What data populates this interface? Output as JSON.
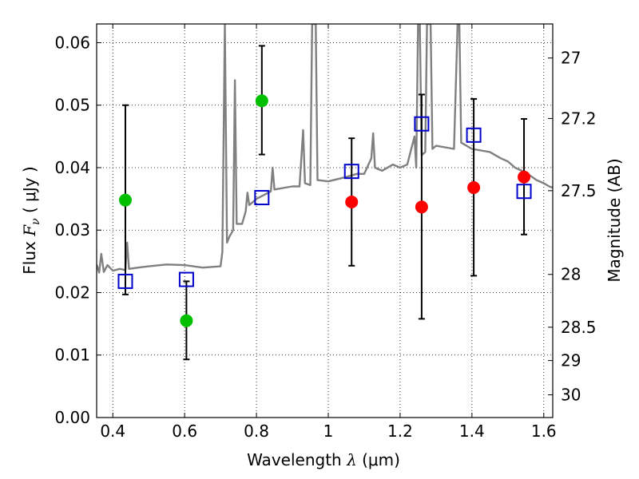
{
  "chart_data": {
    "type": "scatter",
    "xlabel": {
      "prefix": "Wavelength  ",
      "symbol": "λ",
      "units": " (μm)"
    },
    "ylabel": {
      "prefix": "Flux  ",
      "symbol": "F",
      "sub": "ν",
      "units": "  ( μJy )"
    },
    "y2label": "Magnitude (AB)",
    "xlim": [
      0.355,
      1.625
    ],
    "ylim": [
      0.0,
      0.063
    ],
    "x_ticks": [
      {
        "v": 0.4,
        "label": "0.4"
      },
      {
        "v": 0.6,
        "label": "0.6"
      },
      {
        "v": 0.8,
        "label": "0.8"
      },
      {
        "v": 1.0,
        "label": "1"
      },
      {
        "v": 1.2,
        "label": "1.2"
      },
      {
        "v": 1.4,
        "label": "1.4"
      },
      {
        "v": 1.6,
        "label": "1.6"
      }
    ],
    "y_ticks": [
      {
        "v": 0.0,
        "label": "0.00"
      },
      {
        "v": 0.01,
        "label": "0.01"
      },
      {
        "v": 0.02,
        "label": "0.02"
      },
      {
        "v": 0.03,
        "label": "0.03"
      },
      {
        "v": 0.04,
        "label": "0.04"
      },
      {
        "v": 0.05,
        "label": "0.05"
      },
      {
        "v": 0.06,
        "label": "0.06"
      }
    ],
    "y2_ticks": [
      {
        "mag": 27,
        "label": "27"
      },
      {
        "mag": 27.2,
        "label": "27.2"
      },
      {
        "mag": 27.5,
        "label": "27.5"
      },
      {
        "mag": 28,
        "label": "28"
      },
      {
        "mag": 28.5,
        "label": "28.5"
      },
      {
        "mag": 29,
        "label": "29"
      },
      {
        "mag": 30,
        "label": "30"
      }
    ],
    "grid": true,
    "colors": {
      "spectrum": "#808080",
      "detection": "#ff0000",
      "dropout": "#00c000",
      "model": "#0000cc",
      "errorbar": "#000000"
    },
    "series": [
      {
        "kind": "detection",
        "points": [
          {
            "x": 1.065,
            "y": 0.0345,
            "yerr_low": 0.0243,
            "yerr_high": 0.0447
          },
          {
            "x": 1.26,
            "y": 0.0337,
            "yerr_low": 0.0158,
            "yerr_high": 0.0517
          },
          {
            "x": 1.405,
            "y": 0.0368,
            "yerr_low": 0.0227,
            "yerr_high": 0.051
          },
          {
            "x": 1.545,
            "y": 0.0385,
            "yerr_low": 0.0293,
            "yerr_high": 0.0478
          }
        ]
      },
      {
        "kind": "dropout",
        "points": [
          {
            "x": 0.435,
            "y": 0.0348,
            "yerr_low": 0.0197,
            "yerr_high": 0.05
          },
          {
            "x": 0.605,
            "y": 0.0155,
            "yerr_low": 0.0093,
            "yerr_high": 0.0218
          },
          {
            "x": 0.815,
            "y": 0.0507,
            "yerr_low": 0.0421,
            "yerr_high": 0.0595
          }
        ]
      },
      {
        "kind": "model",
        "points": [
          {
            "x": 0.435,
            "y": 0.0218
          },
          {
            "x": 0.605,
            "y": 0.0221
          },
          {
            "x": 0.815,
            "y": 0.0352
          },
          {
            "x": 1.065,
            "y": 0.0394
          },
          {
            "x": 1.26,
            "y": 0.047
          },
          {
            "x": 1.405,
            "y": 0.0452
          },
          {
            "x": 1.545,
            "y": 0.0362
          }
        ]
      }
    ],
    "spectrum": [
      [
        0.355,
        0.0245
      ],
      [
        0.362,
        0.0232
      ],
      [
        0.368,
        0.0262
      ],
      [
        0.375,
        0.0233
      ],
      [
        0.385,
        0.0244
      ],
      [
        0.4,
        0.0235
      ],
      [
        0.42,
        0.0238
      ],
      [
        0.435,
        0.0236
      ],
      [
        0.44,
        0.028
      ],
      [
        0.445,
        0.0238
      ],
      [
        0.47,
        0.024
      ],
      [
        0.5,
        0.0242
      ],
      [
        0.55,
        0.0245
      ],
      [
        0.6,
        0.0244
      ],
      [
        0.65,
        0.024
      ],
      [
        0.7,
        0.0242
      ],
      [
        0.705,
        0.0265
      ],
      [
        0.712,
        0.063
      ],
      [
        0.718,
        0.028
      ],
      [
        0.725,
        0.029
      ],
      [
        0.735,
        0.03
      ],
      [
        0.74,
        0.054
      ],
      [
        0.745,
        0.031
      ],
      [
        0.76,
        0.031
      ],
      [
        0.77,
        0.033
      ],
      [
        0.775,
        0.036
      ],
      [
        0.78,
        0.034
      ],
      [
        0.79,
        0.0345
      ],
      [
        0.8,
        0.035
      ],
      [
        0.82,
        0.0356
      ],
      [
        0.84,
        0.0362
      ],
      [
        0.845,
        0.04
      ],
      [
        0.85,
        0.0365
      ],
      [
        0.88,
        0.0368
      ],
      [
        0.9,
        0.037
      ],
      [
        0.92,
        0.037
      ],
      [
        0.93,
        0.046
      ],
      [
        0.935,
        0.0375
      ],
      [
        0.95,
        0.0372
      ],
      [
        0.955,
        0.063
      ],
      [
        0.965,
        0.063
      ],
      [
        0.97,
        0.038
      ],
      [
        1.0,
        0.0378
      ],
      [
        1.05,
        0.0385
      ],
      [
        1.08,
        0.039
      ],
      [
        1.1,
        0.039
      ],
      [
        1.12,
        0.0415
      ],
      [
        1.125,
        0.0455
      ],
      [
        1.13,
        0.04
      ],
      [
        1.15,
        0.0395
      ],
      [
        1.18,
        0.0405
      ],
      [
        1.2,
        0.04
      ],
      [
        1.22,
        0.0405
      ],
      [
        1.24,
        0.045
      ],
      [
        1.245,
        0.04
      ],
      [
        1.25,
        0.063
      ],
      [
        1.255,
        0.063
      ],
      [
        1.26,
        0.042
      ],
      [
        1.27,
        0.0425
      ],
      [
        1.275,
        0.063
      ],
      [
        1.285,
        0.063
      ],
      [
        1.29,
        0.043
      ],
      [
        1.3,
        0.0435
      ],
      [
        1.35,
        0.043
      ],
      [
        1.36,
        0.063
      ],
      [
        1.365,
        0.063
      ],
      [
        1.37,
        0.044
      ],
      [
        1.4,
        0.043
      ],
      [
        1.45,
        0.0425
      ],
      [
        1.48,
        0.0415
      ],
      [
        1.5,
        0.041
      ],
      [
        1.52,
        0.04
      ],
      [
        1.55,
        0.0392
      ],
      [
        1.58,
        0.038
      ],
      [
        1.6,
        0.0375
      ],
      [
        1.615,
        0.037
      ],
      [
        1.625,
        0.0368
      ]
    ]
  }
}
